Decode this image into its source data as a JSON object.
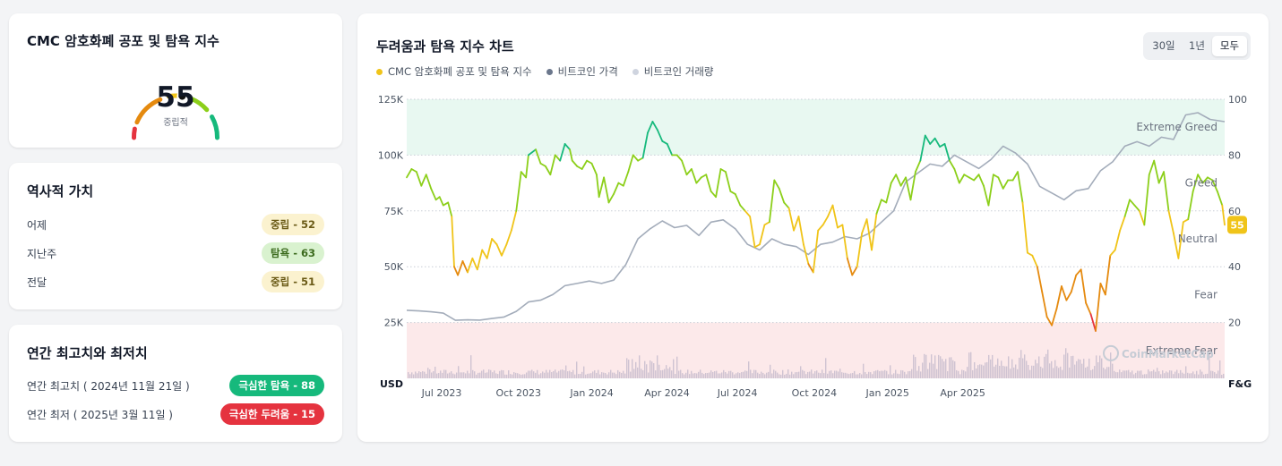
{
  "gauge_card": {
    "title": "CMC 암호화폐 공포 및 탐욕 지수",
    "value": "55",
    "value_number": 55,
    "label": "중립적"
  },
  "history_card": {
    "title": "역사적 가치",
    "rows": [
      {
        "label": "어제",
        "badge": "중립 - 52",
        "category": "neutral"
      },
      {
        "label": "지난주",
        "badge": "탐욕 - 63",
        "category": "greed"
      },
      {
        "label": "전달",
        "badge": "중립 - 51",
        "category": "neutral"
      }
    ]
  },
  "yearly_card": {
    "title": "연간 최고치와 최저치",
    "high_label": "연간 최고치 ( 2024년 11월 21일 )",
    "high_badge": "극심한 탐욕 - 88",
    "low_label": "연간 최저 ( 2025년 3월 11일 )",
    "low_badge": "극심한 두려움 - 15"
  },
  "chart_card": {
    "title": "두려움과 탐욕 지수 차트",
    "ranges": [
      "30일",
      "1년",
      "모두"
    ],
    "active_range": "모두",
    "legend": [
      {
        "name": "CMC 암호화폐 공포 및 탐욕 지수",
        "color": "#f0c419"
      },
      {
        "name": "비트코인 가격",
        "color": "#6b778c"
      },
      {
        "name": "비트코인 거래량",
        "color": "#cfd4df"
      }
    ]
  },
  "colors": {
    "extreme_fear": "#e5333f",
    "fear": "#e58a0f",
    "neutral": "#f0c419",
    "greed": "#8ccf1a",
    "extreme_greed": "#16b97c",
    "btc_price": "#a3acba",
    "volume": "#cfc3d2"
  },
  "chart_data": {
    "type": "line",
    "title": "두려움과 탐욕 지수 차트",
    "x_ticks": [
      "Jul 2023",
      "Oct 2023",
      "Jan 2024",
      "Apr 2024",
      "Jul 2024",
      "Oct 2024",
      "Jan 2025",
      "Apr 2025"
    ],
    "x_start": "2023-06",
    "x_end": "2025-07",
    "left_axis": {
      "unit_label": "USD",
      "ticks": [
        "125K",
        "100K",
        "75K",
        "50K",
        "25K"
      ],
      "tick_values": [
        125000,
        100000,
        75000,
        50000,
        25000
      ],
      "range": [
        0,
        125000
      ]
    },
    "right_axis": {
      "unit_label": "F&G",
      "ticks": [
        "100",
        "80",
        "60",
        "40",
        "20"
      ],
      "tick_values": [
        100,
        80,
        60,
        40,
        20
      ],
      "range": [
        0,
        100
      ]
    },
    "zones": [
      {
        "name": "Extreme Greed",
        "from": 80,
        "to": 100
      },
      {
        "name": "Greed",
        "from": 60,
        "to": 80
      },
      {
        "name": "Neutral",
        "from": 40,
        "to": 60
      },
      {
        "name": "Fear",
        "from": 20,
        "to": 40
      },
      {
        "name": "Extreme Fear",
        "from": 0,
        "to": 20
      }
    ],
    "current_value_tag": "55",
    "watermark": "CoinMarketCap",
    "fear_greed_series": [
      [
        0,
        72
      ],
      [
        0.2,
        75
      ],
      [
        0.4,
        74
      ],
      [
        0.6,
        69
      ],
      [
        0.8,
        73
      ],
      [
        1.0,
        68
      ],
      [
        1.2,
        64
      ],
      [
        1.35,
        65
      ],
      [
        1.5,
        62
      ],
      [
        1.7,
        63
      ],
      [
        1.85,
        58
      ],
      [
        1.95,
        40
      ],
      [
        2.1,
        37
      ],
      [
        2.3,
        42
      ],
      [
        2.5,
        38
      ],
      [
        2.7,
        43
      ],
      [
        2.9,
        39
      ],
      [
        3.1,
        46
      ],
      [
        3.3,
        43
      ],
      [
        3.5,
        50
      ],
      [
        3.7,
        48
      ],
      [
        3.9,
        44
      ],
      [
        4.1,
        48
      ],
      [
        4.3,
        53
      ],
      [
        4.5,
        60
      ],
      [
        4.7,
        74
      ],
      [
        4.9,
        72
      ],
      [
        5.0,
        80
      ],
      [
        5.3,
        82
      ],
      [
        5.5,
        77
      ],
      [
        5.7,
        76
      ],
      [
        5.9,
        73
      ],
      [
        6.1,
        80
      ],
      [
        6.3,
        78
      ],
      [
        6.5,
        84
      ],
      [
        6.7,
        82
      ],
      [
        6.8,
        78
      ],
      [
        7.0,
        76
      ],
      [
        7.2,
        75
      ],
      [
        7.4,
        78
      ],
      [
        7.6,
        77
      ],
      [
        7.8,
        73
      ],
      [
        7.9,
        65
      ],
      [
        8.1,
        72
      ],
      [
        8.3,
        63
      ],
      [
        8.5,
        66
      ],
      [
        8.7,
        70
      ],
      [
        8.9,
        69
      ],
      [
        9.1,
        74
      ],
      [
        9.3,
        80
      ],
      [
        9.5,
        78
      ],
      [
        9.7,
        79
      ],
      [
        9.9,
        88
      ],
      [
        10.1,
        92
      ],
      [
        10.3,
        89
      ],
      [
        10.5,
        85
      ],
      [
        10.7,
        84
      ],
      [
        10.9,
        80
      ],
      [
        11.1,
        80
      ],
      [
        11.3,
        78
      ],
      [
        11.5,
        73
      ],
      [
        11.7,
        75
      ],
      [
        11.9,
        70
      ],
      [
        12.1,
        72
      ],
      [
        12.3,
        73
      ],
      [
        12.5,
        67
      ],
      [
        12.7,
        65
      ],
      [
        12.9,
        75
      ],
      [
        13.1,
        74
      ],
      [
        13.3,
        67
      ],
      [
        13.5,
        66
      ],
      [
        13.7,
        62
      ],
      [
        13.9,
        60
      ],
      [
        14.1,
        58
      ],
      [
        14.3,
        47
      ],
      [
        14.5,
        48
      ],
      [
        14.7,
        55
      ],
      [
        14.9,
        56
      ],
      [
        15.1,
        71
      ],
      [
        15.3,
        68
      ],
      [
        15.5,
        63
      ],
      [
        15.7,
        61
      ],
      [
        15.9,
        53
      ],
      [
        16.1,
        58
      ],
      [
        16.3,
        48
      ],
      [
        16.5,
        41
      ],
      [
        16.7,
        38
      ],
      [
        16.9,
        53
      ],
      [
        17.1,
        55
      ],
      [
        17.3,
        58
      ],
      [
        17.5,
        62
      ],
      [
        17.7,
        54
      ],
      [
        17.9,
        55
      ],
      [
        18.1,
        43
      ],
      [
        18.3,
        37
      ],
      [
        18.5,
        40
      ],
      [
        18.7,
        52
      ],
      [
        18.9,
        57
      ],
      [
        19.1,
        46
      ],
      [
        19.3,
        59
      ],
      [
        19.5,
        64
      ],
      [
        19.7,
        63
      ],
      [
        19.9,
        70
      ],
      [
        20.1,
        73
      ],
      [
        20.3,
        69
      ],
      [
        20.5,
        72
      ],
      [
        20.7,
        64
      ],
      [
        20.9,
        74
      ],
      [
        21.1,
        78
      ],
      [
        21.3,
        87
      ],
      [
        21.5,
        84
      ],
      [
        21.7,
        86
      ],
      [
        21.9,
        83
      ],
      [
        22.1,
        84
      ],
      [
        22.3,
        78
      ],
      [
        22.5,
        75
      ],
      [
        22.7,
        70
      ],
      [
        22.9,
        73
      ],
      [
        23.1,
        72
      ],
      [
        23.3,
        71
      ],
      [
        23.5,
        73
      ],
      [
        23.7,
        69
      ],
      [
        23.9,
        62
      ],
      [
        24.1,
        73
      ],
      [
        24.3,
        72
      ],
      [
        24.5,
        68
      ],
      [
        24.7,
        71
      ],
      [
        24.9,
        71
      ],
      [
        25.1,
        74
      ],
      [
        25.3,
        63
      ],
      [
        25.5,
        45
      ],
      [
        25.7,
        44
      ],
      [
        25.9,
        40
      ],
      [
        26.1,
        31
      ],
      [
        26.3,
        22
      ],
      [
        26.5,
        19
      ],
      [
        26.7,
        25
      ],
      [
        26.9,
        33
      ],
      [
        27.1,
        28
      ],
      [
        27.3,
        31
      ],
      [
        27.5,
        37
      ],
      [
        27.7,
        39
      ],
      [
        27.9,
        27
      ],
      [
        28.1,
        23
      ],
      [
        28.3,
        17
      ],
      [
        28.5,
        34
      ],
      [
        28.7,
        30
      ],
      [
        28.9,
        44
      ],
      [
        29.1,
        46
      ],
      [
        29.3,
        53
      ],
      [
        29.5,
        58
      ],
      [
        29.7,
        64
      ],
      [
        29.9,
        62
      ],
      [
        30.1,
        60
      ],
      [
        30.3,
        55
      ],
      [
        30.5,
        73
      ],
      [
        30.7,
        78
      ],
      [
        30.9,
        70
      ],
      [
        31.1,
        74
      ],
      [
        31.3,
        60
      ],
      [
        31.5,
        52
      ],
      [
        31.7,
        43
      ],
      [
        31.9,
        56
      ],
      [
        32.1,
        57
      ],
      [
        32.3,
        67
      ],
      [
        32.5,
        73
      ],
      [
        32.7,
        70
      ],
      [
        32.9,
        72
      ],
      [
        33.1,
        71
      ],
      [
        33.3,
        67
      ],
      [
        33.5,
        62
      ],
      [
        33.6,
        55
      ]
    ],
    "btc_price_series": [
      [
        0,
        30500
      ],
      [
        0.5,
        30200
      ],
      [
        1.0,
        29800
      ],
      [
        1.5,
        29200
      ],
      [
        2.0,
        26000
      ],
      [
        2.5,
        26200
      ],
      [
        3.0,
        26100
      ],
      [
        3.5,
        26800
      ],
      [
        4.0,
        27500
      ],
      [
        4.5,
        30000
      ],
      [
        5.0,
        34200
      ],
      [
        5.5,
        35000
      ],
      [
        6.0,
        37500
      ],
      [
        6.5,
        41500
      ],
      [
        7.0,
        42500
      ],
      [
        7.5,
        43600
      ],
      [
        8.0,
        42500
      ],
      [
        8.5,
        44000
      ],
      [
        9.0,
        51000
      ],
      [
        9.5,
        62500
      ],
      [
        10.0,
        67000
      ],
      [
        10.5,
        70500
      ],
      [
        11.0,
        67500
      ],
      [
        11.5,
        68500
      ],
      [
        12.0,
        64000
      ],
      [
        12.5,
        70000
      ],
      [
        13.0,
        71000
      ],
      [
        13.5,
        67000
      ],
      [
        14.0,
        60000
      ],
      [
        14.5,
        57500
      ],
      [
        15.0,
        62500
      ],
      [
        15.5,
        60000
      ],
      [
        16.0,
        59000
      ],
      [
        16.5,
        55500
      ],
      [
        17.0,
        60000
      ],
      [
        17.5,
        61000
      ],
      [
        18.0,
        63500
      ],
      [
        18.5,
        62500
      ],
      [
        19.0,
        65000
      ],
      [
        19.5,
        70000
      ],
      [
        20.0,
        75000
      ],
      [
        20.5,
        88000
      ],
      [
        21.0,
        92000
      ],
      [
        21.5,
        96000
      ],
      [
        22.0,
        95000
      ],
      [
        22.5,
        100000
      ],
      [
        23.0,
        97000
      ],
      [
        23.5,
        94000
      ],
      [
        24.0,
        98000
      ],
      [
        24.5,
        104000
      ],
      [
        25.0,
        101000
      ],
      [
        25.5,
        96000
      ],
      [
        26.0,
        86000
      ],
      [
        26.5,
        83000
      ],
      [
        27.0,
        80000
      ],
      [
        27.5,
        84000
      ],
      [
        28.0,
        85000
      ],
      [
        28.5,
        93000
      ],
      [
        29.0,
        97000
      ],
      [
        29.5,
        104000
      ],
      [
        30.0,
        106000
      ],
      [
        30.5,
        104000
      ],
      [
        31.0,
        108000
      ],
      [
        31.5,
        107000
      ],
      [
        32.0,
        118000
      ],
      [
        32.5,
        119000
      ],
      [
        33.0,
        116000
      ],
      [
        33.6,
        115000
      ]
    ]
  }
}
